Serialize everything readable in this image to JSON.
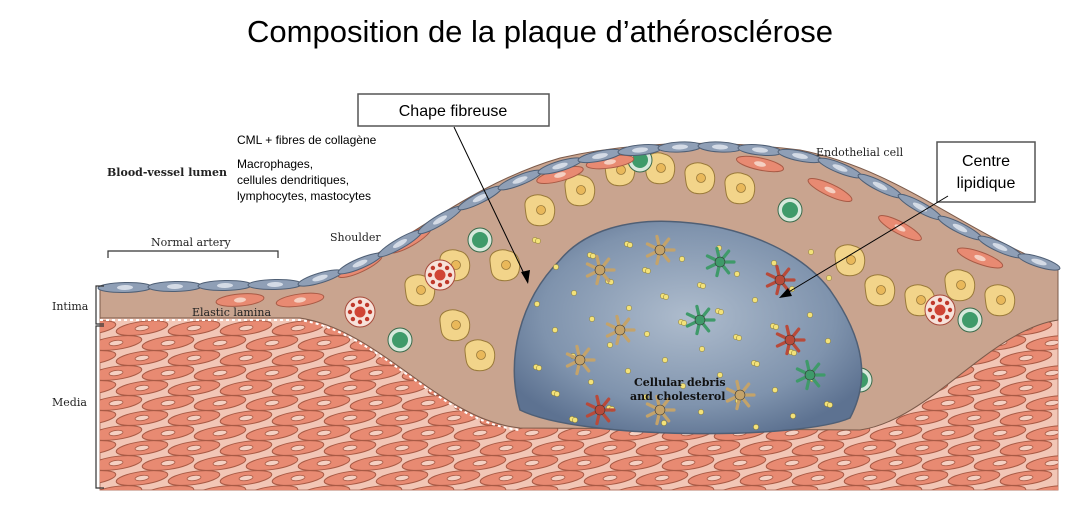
{
  "title": "Composition de la plaque d’athérosclérose",
  "callouts": {
    "chape": "Chape fibreuse",
    "centre_line1": "Centre",
    "centre_line2": "lipidique"
  },
  "annotations": {
    "cml": "CML + fibres de collagène",
    "macro_line1": "Macrophages,",
    "macro_line2": "cellules dendritiques,",
    "macro_line3": "lymphocytes, mastocytes"
  },
  "labels": {
    "lumen": "Blood-vessel lumen",
    "normal_artery": "Normal artery",
    "shoulder": "Shoulder",
    "endothelial": "Endothelial cell",
    "elastic": "Elastic lamina",
    "intima": "Intima",
    "media": "Media",
    "debris_line1": "Cellular debris",
    "debris_line2": "and cholesterol"
  },
  "colors": {
    "endothelium": "#8f9fb6",
    "intima": "#c9a48f",
    "media_bg": "#f2c6b6",
    "smc": "#e88a72",
    "lipid_core": "#7f93ad",
    "foam_cell": "#f2d48a",
    "lymphocyte": "#3f9a6a",
    "callout_border": "#555555"
  }
}
